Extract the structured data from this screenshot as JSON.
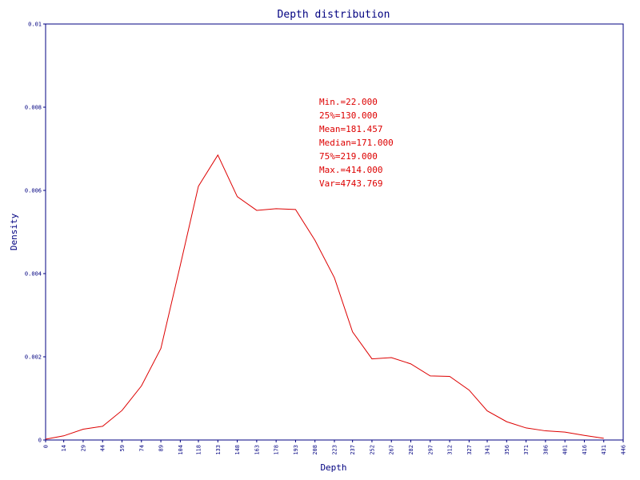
{
  "colors": {
    "axis": "#000080",
    "line": "#dd0000",
    "stats_text": "#dd0000",
    "background": "#ffffff"
  },
  "chart_data": {
    "type": "line",
    "title": "Depth distribution",
    "xlabel": "Depth",
    "ylabel": "Density",
    "xlim": [
      0,
      446
    ],
    "ylim": [
      0,
      0.01
    ],
    "grid": false,
    "x_ticks": [
      "0",
      "14",
      "29",
      "44",
      "59",
      "74",
      "89",
      "104",
      "118",
      "133",
      "148",
      "163",
      "178",
      "193",
      "208",
      "223",
      "237",
      "252",
      "267",
      "282",
      "297",
      "312",
      "327",
      "341",
      "356",
      "371",
      "386",
      "401",
      "416",
      "431",
      "446"
    ],
    "y_ticks": [
      "0",
      "0.002",
      "0.004",
      "0.006",
      "0.008",
      "0.01"
    ],
    "series": [
      {
        "name": "",
        "x": [
          0,
          14,
          29,
          44,
          59,
          74,
          89,
          104,
          118,
          133,
          148,
          163,
          178,
          193,
          208,
          223,
          237,
          252,
          267,
          282,
          297,
          312,
          327,
          341,
          356,
          371,
          386,
          401,
          416,
          431
        ],
        "y": [
          2e-05,
          0.0001,
          0.00026,
          0.00033,
          0.00071,
          0.0013,
          0.0022,
          0.0042,
          0.0061,
          0.00685,
          0.00585,
          0.00552,
          0.00556,
          0.00554,
          0.0048,
          0.0039,
          0.0026,
          0.00195,
          0.00198,
          0.00183,
          0.00154,
          0.00153,
          0.0012,
          0.0007,
          0.00044,
          0.00029,
          0.00022,
          0.00019,
          0.00011,
          4e-05
        ]
      }
    ],
    "annotations": [
      "Min.=22.000",
      "25%=130.000",
      "Mean=181.457",
      "Median=171.000",
      "75%=219.000",
      "Max.=414.000",
      "Var=4743.769"
    ]
  }
}
